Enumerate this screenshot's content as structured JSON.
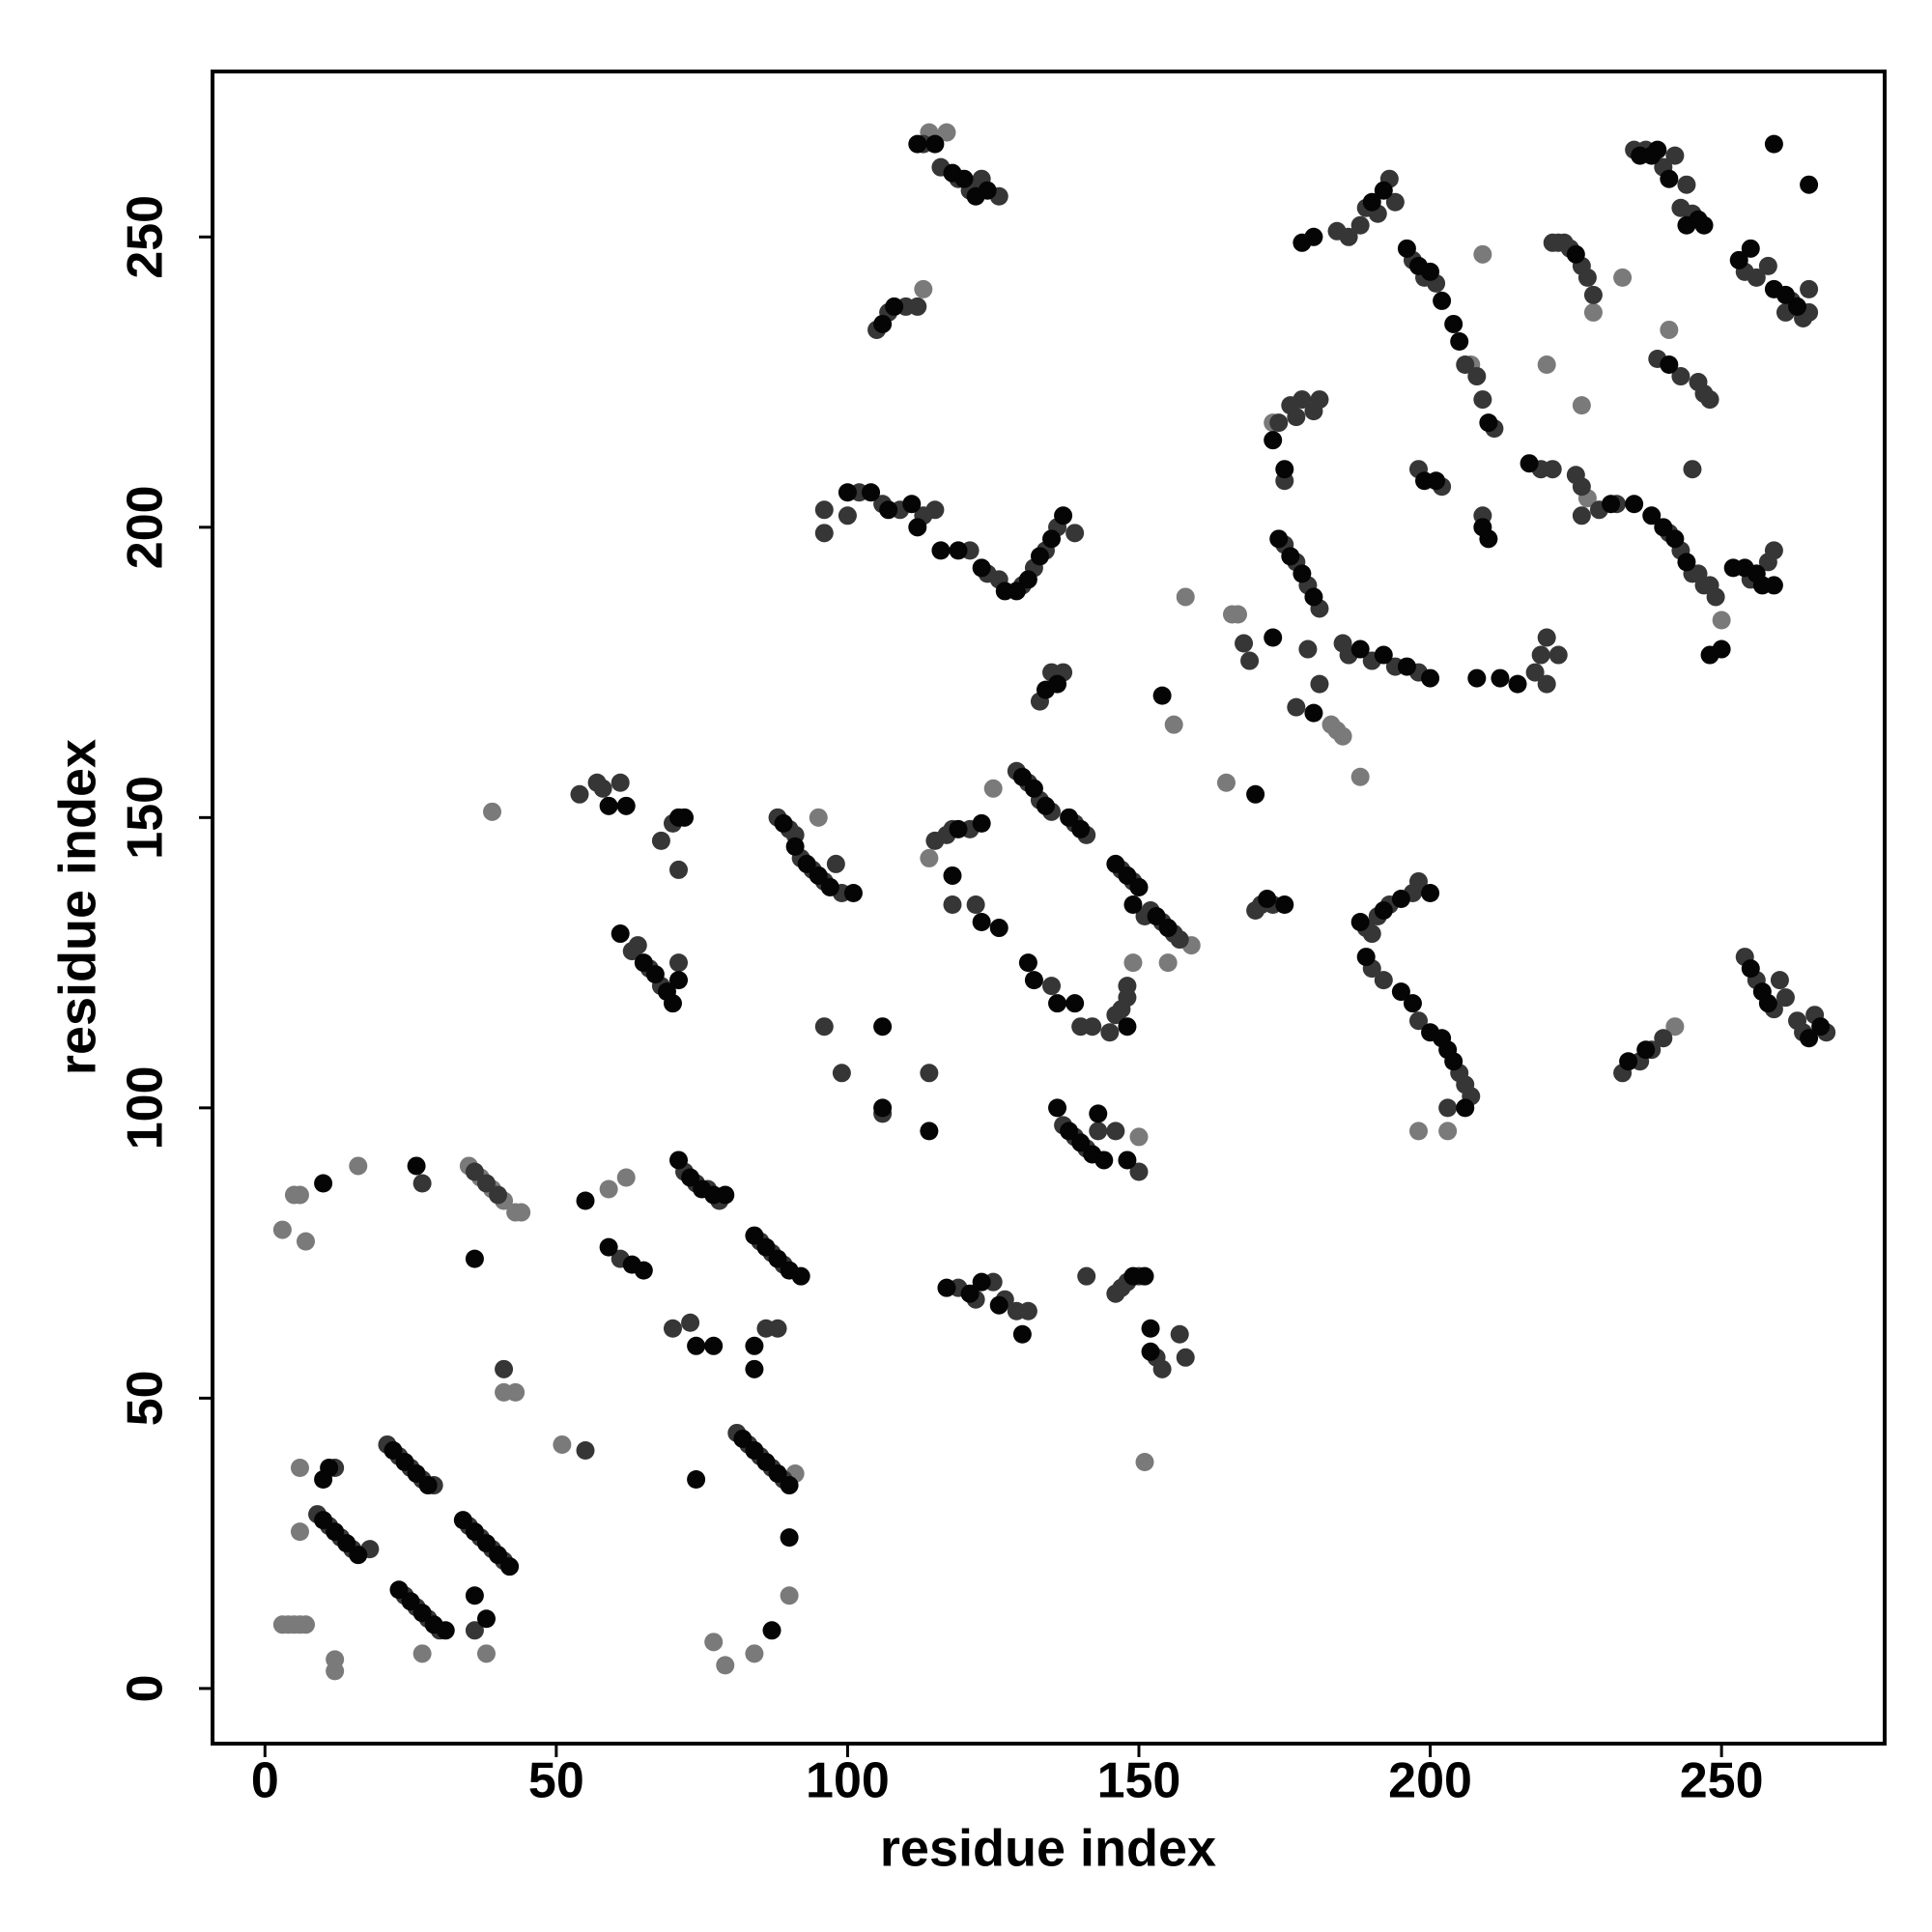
{
  "chart_data": {
    "type": "scatter",
    "x_label": "residue index",
    "y_label": "residue index",
    "xlim": [
      -9,
      278
    ],
    "ylim": [
      -9.5,
      278.5
    ],
    "xticks": [
      0,
      50,
      100,
      150,
      200,
      250
    ],
    "yticks": [
      0,
      50,
      100,
      150,
      200,
      250
    ],
    "grid": false,
    "series": [
      {
        "color": "#7a7a7a",
        "x": [
          3,
          4,
          5,
          6,
          7,
          12,
          12,
          6,
          6,
          27,
          38,
          41,
          43,
          51,
          91,
          90,
          77,
          79,
          84,
          3,
          5,
          6,
          7,
          16,
          35,
          37,
          39,
          41,
          43,
          44,
          59,
          62,
          39,
          95,
          96,
          165,
          158,
          156,
          155,
          150,
          151,
          113,
          114,
          173,
          166,
          167,
          183,
          184,
          185,
          188,
          198,
          203,
          207,
          209,
          220,
          226,
          228,
          233,
          242,
          241,
          114,
          117,
          149,
          125,
          159,
          171,
          227,
          250
        ],
        "y": [
          11,
          11,
          11,
          11,
          11,
          5,
          3,
          38,
          27,
          6,
          6,
          51,
          51,
          42,
          37,
          16,
          8,
          4,
          6,
          79,
          85,
          85,
          77,
          90,
          90,
          88,
          86,
          84,
          82,
          82,
          86,
          88,
          151,
          150,
          139,
          156,
          188,
          166,
          125,
          95,
          39,
          241,
          268,
          218,
          185,
          185,
          166,
          165,
          164,
          157,
          96,
          96,
          228,
          247,
          228,
          221,
          237,
          243,
          114,
          234,
          143,
          268,
          125,
          155,
          128,
          135,
          205,
          184
        ]
      },
      {
        "color": "#363636",
        "x": [
          9,
          11,
          13,
          15,
          18,
          12,
          21,
          23,
          25,
          27,
          29,
          24,
          26,
          28,
          30,
          35,
          37,
          39,
          41,
          36,
          41,
          55,
          81,
          83,
          85,
          87,
          89,
          88,
          86,
          27,
          36,
          38,
          40,
          61,
          72,
          74,
          76,
          78,
          85,
          87,
          89,
          70,
          73,
          54,
          57,
          58,
          61,
          68,
          70,
          71,
          63,
          64,
          66,
          68,
          71,
          88,
          90,
          91,
          92,
          94,
          96,
          99,
          98,
          99,
          106,
          114,
          96,
          115,
          117,
          118,
          121,
          129,
          131,
          133,
          135,
          139,
          141,
          118,
          122,
          135,
          140,
          142,
          145,
          146,
          147,
          148,
          148,
          147,
          149,
          151,
          152,
          154,
          156,
          157,
          137,
          139,
          141,
          143,
          146,
          150,
          119,
          122,
          125,
          127,
          129,
          131,
          141,
          146,
          147,
          148,
          150,
          153,
          154,
          157,
          158,
          96,
          96,
          100,
          102,
          106,
          109,
          113,
          115,
          121,
          124,
          126,
          130,
          132,
          134,
          136,
          139,
          133,
          135,
          137,
          105,
          107,
          110,
          112,
          113,
          116,
          119,
          121,
          123,
          126,
          169,
          168,
          170,
          171,
          173,
          177,
          181,
          179,
          174,
          176,
          177,
          178,
          180,
          181,
          175,
          177,
          179,
          181,
          175,
          184,
          186,
          188,
          189,
          191,
          193,
          194,
          197,
          199,
          201,
          206,
          208,
          209,
          211,
          185,
          186,
          190,
          194,
          198,
          189,
          190,
          191,
          193,
          197,
          198,
          190,
          192,
          198,
          205,
          207,
          206,
          203,
          198,
          202,
          209,
          218,
          220,
          219,
          220,
          222,
          219,
          221,
          225,
          226,
          229,
          232,
          221,
          222,
          223,
          224,
          226,
          227,
          228,
          226,
          241,
          243,
          245,
          247,
          246,
          248,
          249,
          235,
          237,
          240,
          242,
          243,
          245,
          244,
          239,
          243,
          246,
          247,
          248,
          245,
          255,
          258,
          259,
          254,
          256,
          258,
          262,
          264,
          265,
          265,
          261,
          254,
          256,
          259,
          260,
          261,
          263,
          264,
          266,
          268,
          233,
          236,
          238,
          240
        ],
        "y": [
          30,
          28,
          26,
          24,
          24,
          38,
          42,
          40,
          38,
          36,
          35,
          16,
          14,
          12,
          10,
          28,
          26,
          24,
          22,
          10,
          55,
          41,
          44,
          42,
          40,
          38,
          36,
          62,
          62,
          87,
          89,
          87,
          85,
          74,
          89,
          87,
          86,
          84,
          77,
          75,
          73,
          62,
          63,
          154,
          156,
          155,
          156,
          146,
          149,
          141,
          127,
          128,
          124,
          121,
          125,
          150,
          148,
          147,
          143,
          141,
          139,
          137,
          142,
          106,
          99,
          106,
          114,
          146,
          147,
          148,
          148,
          158,
          156,
          153,
          151,
          149,
          147,
          135,
          135,
          121,
          114,
          114,
          113,
          116,
          117,
          119,
          121,
          141,
          139,
          133,
          134,
          132,
          130,
          129,
          97,
          95,
          93,
          96,
          96,
          89,
          69,
          67,
          70,
          67,
          65,
          65,
          71,
          68,
          69,
          70,
          71,
          57,
          55,
          61,
          57,
          203,
          199,
          202,
          206,
          204,
          203,
          202,
          203,
          196,
          192,
          191,
          190,
          193,
          196,
          200,
          199,
          170,
          175,
          175,
          234,
          237,
          238,
          238,
          266,
          262,
          260,
          258,
          260,
          257,
          177,
          180,
          134,
          135,
          135,
          169,
          173,
          179,
          218,
          221,
          219,
          222,
          220,
          222,
          197,
          194,
          190,
          186,
          208,
          251,
          250,
          252,
          255,
          254,
          260,
          256,
          246,
          243,
          242,
          228,
          226,
          222,
          217,
          180,
          178,
          177,
          176,
          175,
          131,
          130,
          133,
          135,
          137,
          139,
          124,
          122,
          115,
          106,
          102,
          104,
          100,
          210,
          207,
          202,
          175,
          173,
          178,
          181,
          178,
          210,
          210,
          209,
          207,
          203,
          204,
          249,
          249,
          249,
          248,
          245,
          243,
          240,
          202,
          199,
          196,
          192,
          190,
          192,
          190,
          188,
          265,
          265,
          262,
          264,
          255,
          254,
          259,
          229,
          226,
          225,
          223,
          222,
          210,
          191,
          194,
          196,
          244,
          243,
          245,
          239,
          236,
          241,
          237,
          237,
          126,
          122,
          117,
          122,
          119,
          115,
          113,
          116,
          113,
          106,
          108,
          110,
          112
        ]
      },
      {
        "color": "#050505",
        "x": [
          10,
          12,
          14,
          16,
          10,
          11,
          22,
          24,
          26,
          28,
          23,
          25,
          27,
          29,
          31,
          34,
          36,
          38,
          40,
          42,
          38,
          36,
          74,
          82,
          84,
          86,
          88,
          90,
          87,
          90,
          84,
          84,
          10,
          26,
          36,
          55,
          59,
          63,
          65,
          71,
          73,
          75,
          77,
          79,
          84,
          86,
          88,
          90,
          92,
          74,
          77,
          59,
          62,
          71,
          72,
          61,
          65,
          67,
          69,
          70,
          71,
          89,
          91,
          93,
          95,
          97,
          101,
          106,
          106,
          114,
          118,
          123,
          126,
          119,
          123,
          130,
          132,
          134,
          138,
          140,
          131,
          132,
          136,
          139,
          148,
          146,
          148,
          150,
          149,
          153,
          155,
          136,
          138,
          140,
          142,
          143,
          144,
          148,
          117,
          121,
          123,
          126,
          130,
          149,
          151,
          152,
          152,
          100,
          104,
          107,
          111,
          112,
          116,
          119,
          123,
          127,
          129,
          131,
          133,
          135,
          137,
          134,
          136,
          106,
          108,
          112,
          115,
          118,
          120,
          122,
          124,
          154,
          170,
          172,
          175,
          173,
          180,
          173,
          175,
          174,
          176,
          178,
          180,
          178,
          180,
          190,
          192,
          196,
          198,
          200,
          202,
          204,
          205,
          210,
          188,
          192,
          196,
          200,
          188,
          192,
          195,
          200,
          189,
          195,
          197,
          200,
          202,
          204,
          206,
          203,
          199,
          201,
          209,
          210,
          208,
          212,
          215,
          217,
          231,
          225,
          235,
          238,
          240,
          242,
          244,
          236,
          238,
          239,
          241,
          244,
          246,
          247,
          241,
          248,
          250,
          252,
          254,
          256,
          259,
          257,
          253,
          255,
          259,
          261,
          263,
          259,
          265,
          255,
          257,
          258,
          265,
          267,
          234,
          237
        ],
        "y": [
          29,
          27,
          25,
          23,
          36,
          38,
          41,
          39,
          37,
          35,
          17,
          15,
          13,
          11,
          10,
          29,
          27,
          25,
          23,
          21,
          12,
          16,
          36,
          43,
          41,
          39,
          37,
          35,
          10,
          26,
          59,
          55,
          87,
          90,
          74,
          84,
          76,
          73,
          72,
          91,
          88,
          86,
          85,
          85,
          78,
          76,
          74,
          72,
          71,
          59,
          59,
          152,
          152,
          150,
          150,
          130,
          125,
          123,
          120,
          118,
          122,
          149,
          145,
          142,
          140,
          138,
          137,
          114,
          100,
          96,
          140,
          132,
          131,
          148,
          149,
          157,
          155,
          152,
          150,
          148,
          125,
          122,
          118,
          118,
          114,
          142,
          140,
          138,
          135,
          133,
          131,
          100,
          96,
          94,
          92,
          99,
          91,
          91,
          69,
          68,
          70,
          66,
          61,
          71,
          71,
          62,
          58,
          206,
          206,
          203,
          204,
          200,
          196,
          196,
          193,
          189,
          189,
          191,
          195,
          198,
          202,
          172,
          173,
          235,
          238,
          266,
          266,
          261,
          260,
          257,
          258,
          171,
          154,
          136,
          135,
          181,
          168,
          215,
          210,
          198,
          195,
          192,
          188,
          249,
          250,
          256,
          258,
          248,
          245,
          244,
          239,
          235,
          232,
          218,
          179,
          178,
          176,
          174,
          132,
          134,
          136,
          137,
          126,
          120,
          118,
          113,
          112,
          108,
          100,
          110,
          208,
          208,
          200,
          198,
          174,
          174,
          173,
          211,
          204,
          247,
          204,
          202,
          200,
          198,
          194,
          264,
          264,
          265,
          260,
          252,
          253,
          252,
          228,
          178,
          179,
          193,
          193,
          192,
          190,
          190,
          246,
          248,
          241,
          240,
          238,
          266,
          259,
          124,
          120,
          118,
          112,
          114,
          108,
          110
        ]
      }
    ]
  }
}
